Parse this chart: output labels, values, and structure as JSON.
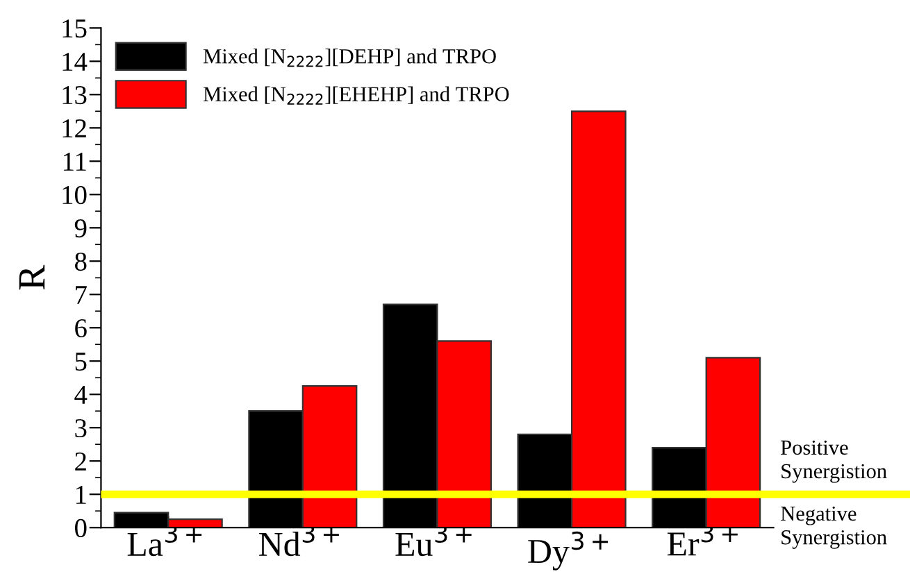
{
  "chart_data": {
    "type": "bar",
    "ylabel": "R",
    "categories": [
      "La$^{3+}$",
      "Nd$^{3+}$",
      "Eu$^{3+}$",
      "Dy$^{3+}$",
      "Er$^{3+}$"
    ],
    "series": [
      {
        "name": "Mixed [N$_{2222}$][DEHP] and TRPO",
        "color": "#000000",
        "values": [
          0.45,
          3.5,
          6.7,
          2.8,
          2.4
        ]
      },
      {
        "name": "Mixed [N$_{2222}$][EHEHP] and TRPO",
        "color": "#ff0000",
        "values": [
          0.25,
          4.25,
          5.6,
          12.5,
          5.1
        ]
      }
    ],
    "ylim": [
      0,
      15
    ],
    "yticks": [
      0,
      1,
      2,
      3,
      4,
      5,
      6,
      7,
      8,
      9,
      10,
      11,
      12,
      13,
      14,
      15
    ],
    "ref_lines": [
      {
        "axis": "y",
        "value": 1,
        "color": "#ffff00"
      }
    ],
    "annotations": [
      "Positive\nSynergistion",
      "Negative\nSynergistion"
    ],
    "legend": "top left",
    "grid": false
  }
}
